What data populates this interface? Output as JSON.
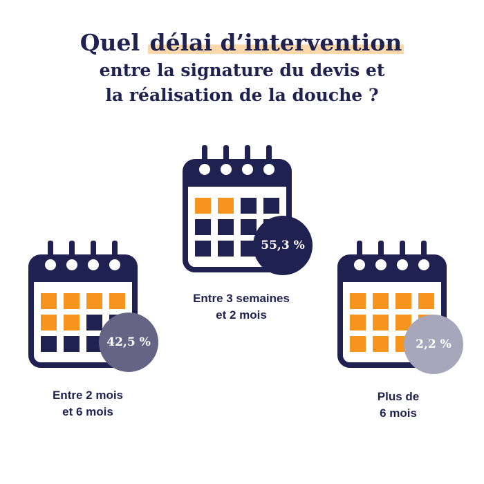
{
  "header": {
    "title_pre": "Quel ",
    "title_hl": "délai d’intervention",
    "line2": "entre la signature du devis et",
    "line3": "la réalisation de la douche ?"
  },
  "colors": {
    "navy": "#1f2150",
    "orange": "#f7941d",
    "highlight": "#fbd8a9"
  },
  "chart_data": {
    "type": "pictogram",
    "title": "Quel délai d’intervention entre la signature du devis et la réalisation de la douche ?",
    "unit": "%",
    "series": [
      {
        "label_lines": [
          "Entre 3 semaines",
          "et 2 mois"
        ],
        "value": 55.3,
        "display": "55,3 %",
        "badge_color": "#1f2150",
        "cells": [
          1,
          1,
          0,
          0,
          0,
          0,
          0,
          0,
          0,
          0,
          0,
          0
        ]
      },
      {
        "label_lines": [
          "Entre 2 mois",
          "et 6 mois"
        ],
        "value": 42.5,
        "display": "42,5 %",
        "badge_color": "#666485",
        "cells": [
          1,
          1,
          1,
          1,
          1,
          1,
          0,
          0,
          0,
          0,
          0,
          0
        ]
      },
      {
        "label_lines": [
          "Plus de",
          "6 mois"
        ],
        "value": 2.2,
        "display": "2,2 %",
        "badge_color": "#a7a6ba",
        "cells": [
          1,
          1,
          1,
          1,
          1,
          1,
          1,
          1,
          1,
          1,
          1,
          1
        ]
      }
    ]
  }
}
